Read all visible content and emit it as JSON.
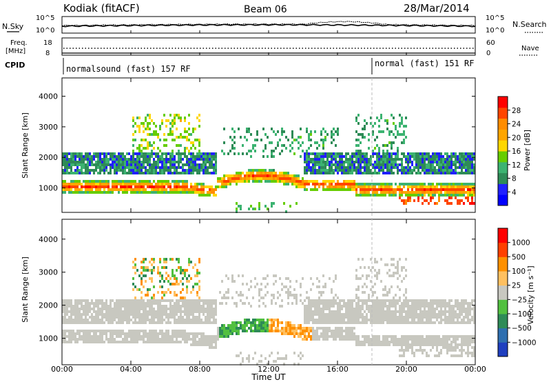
{
  "header": {
    "station": "Kodiak (fitACF)",
    "beam": "Beam 06",
    "date": "28/Mar/2014"
  },
  "top_panel": {
    "left_label": "N.Sky",
    "right_label": "N.Search",
    "left_ticks": [
      "10^5",
      "10^0"
    ],
    "right_ticks": [
      "10^5",
      "10^0"
    ],
    "freq_label_1": "Freq.",
    "freq_label_2": "[MHz]",
    "freq_ticks": [
      "18",
      "8"
    ],
    "nave_label": "Nave",
    "nave_ticks": [
      "60",
      "0"
    ],
    "cpid_label": "CPID",
    "cpid_segments": [
      "normalsound (fast) 157 RF",
      "normal (fast) 151 RF"
    ]
  },
  "colors": {
    "power_scale": [
      "#0000ff",
      "#2020ff",
      "#2e8b57",
      "#3cb371",
      "#66cd00",
      "#ffd700",
      "#ffa500",
      "#ff8c00",
      "#ff4500",
      "#ff0000"
    ],
    "velocity_scale": [
      "#1f3fbf",
      "#2e6fb0",
      "#2e8b57",
      "#52c040",
      "#c8c8c0",
      "#ffc060",
      "#ff9000",
      "#ff4000",
      "#ff0000"
    ]
  },
  "chart_data": [
    {
      "type": "heatmap",
      "name_hint": "power",
      "ylabel": "Slant Range [km]",
      "yticks": [
        "1000",
        "2000",
        "3000",
        "4000"
      ],
      "ylim": [
        200,
        4600
      ],
      "colorbar_label": "Power [dB]",
      "colorbar_ticks": [
        "4",
        "8",
        "12",
        "16",
        "20",
        "24",
        "28"
      ],
      "colorbar_range": [
        0,
        32
      ]
    },
    {
      "type": "heatmap",
      "name_hint": "velocity",
      "ylabel": "Slant Range [km]",
      "yticks": [
        "1000",
        "2000",
        "3000",
        "4000"
      ],
      "ylim": [
        200,
        4600
      ],
      "colorbar_label": "Velocity [m s⁻¹]",
      "colorbar_ticks": [
        "1000",
        "500",
        "100",
        "25",
        "−25",
        "−100",
        "−500",
        "−1000"
      ],
      "xlabel": "Time UT",
      "xticks": [
        "00:00",
        "04:00",
        "08:00",
        "12:00",
        "16:00",
        "20:00",
        "00:00"
      ],
      "xlim": [
        0,
        24
      ]
    }
  ]
}
